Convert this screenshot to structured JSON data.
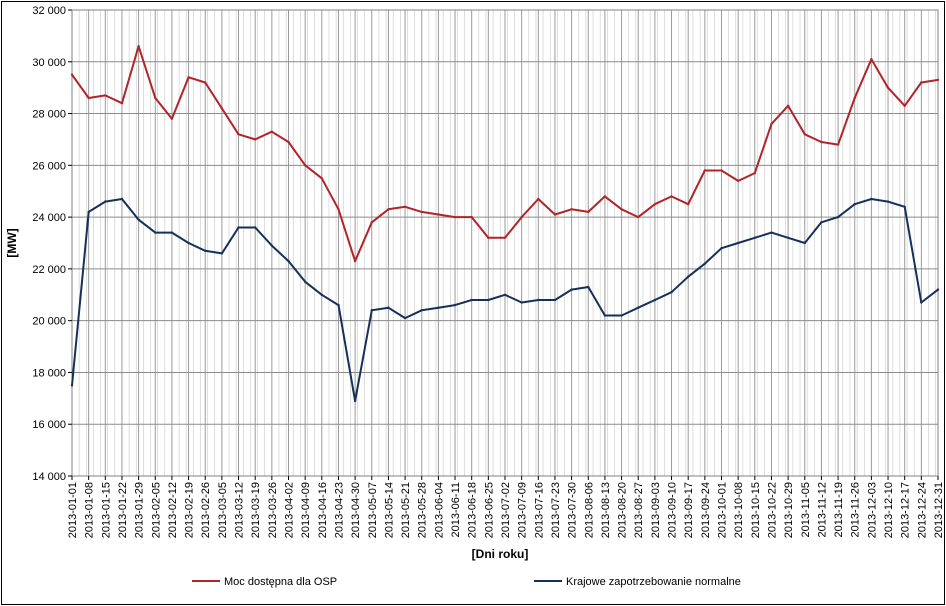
{
  "chart_data": {
    "type": "line",
    "title": "",
    "xlabel": "[Dni roku]",
    "ylabel": "[MW]",
    "ylim": [
      14000,
      32000
    ],
    "y_ticks": [
      14000,
      16000,
      18000,
      20000,
      22000,
      24000,
      26000,
      28000,
      30000,
      32000
    ],
    "y_tick_labels": [
      "14 000",
      "16 000",
      "18 000",
      "20 000",
      "22 000",
      "24 000",
      "26 000",
      "28 000",
      "30 000",
      "32 000"
    ],
    "x_start": "2013-01-01",
    "x_end": "2013-12-31",
    "x_tick_labels": [
      "2013-01-01",
      "2013-01-08",
      "2013-01-15",
      "2013-01-22",
      "2013-01-29",
      "2013-02-05",
      "2013-02-12",
      "2013-02-19",
      "2013-02-26",
      "2013-03-05",
      "2013-03-12",
      "2013-03-19",
      "2013-03-26",
      "2013-04-02",
      "2013-04-09",
      "2013-04-16",
      "2013-04-23",
      "2013-04-30",
      "2013-05-07",
      "2013-05-14",
      "2013-05-21",
      "2013-05-28",
      "2013-06-04",
      "2013-06-11",
      "2013-06-18",
      "2013-06-25",
      "2013-07-02",
      "2013-07-09",
      "2013-07-16",
      "2013-07-23",
      "2013-07-30",
      "2013-08-06",
      "2013-08-13",
      "2013-08-20",
      "2013-08-27",
      "2013-09-03",
      "2013-09-10",
      "2013-09-17",
      "2013-09-24",
      "2013-10-01",
      "2013-10-08",
      "2013-10-15",
      "2013-10-22",
      "2013-10-29",
      "2013-11-05",
      "2013-11-12",
      "2013-11-19",
      "2013-11-26",
      "2013-12-03",
      "2013-12-10",
      "2013-12-17",
      "2013-12-24",
      "2013-12-31"
    ],
    "grid": true,
    "legend_position": "bottom",
    "series": [
      {
        "name": "Moc dostępna dla OSP",
        "color": "#B0242A",
        "x": [
          "2013-01-01",
          "2013-01-08",
          "2013-01-15",
          "2013-01-22",
          "2013-01-29",
          "2013-02-05",
          "2013-02-12",
          "2013-02-19",
          "2013-02-26",
          "2013-03-05",
          "2013-03-12",
          "2013-03-19",
          "2013-03-26",
          "2013-04-02",
          "2013-04-09",
          "2013-04-16",
          "2013-04-23",
          "2013-04-30",
          "2013-05-07",
          "2013-05-14",
          "2013-05-21",
          "2013-05-28",
          "2013-06-04",
          "2013-06-11",
          "2013-06-18",
          "2013-06-25",
          "2013-07-02",
          "2013-07-09",
          "2013-07-16",
          "2013-07-23",
          "2013-07-30",
          "2013-08-06",
          "2013-08-13",
          "2013-08-20",
          "2013-08-27",
          "2013-09-03",
          "2013-09-10",
          "2013-09-17",
          "2013-09-24",
          "2013-10-01",
          "2013-10-08",
          "2013-10-15",
          "2013-10-22",
          "2013-10-29",
          "2013-11-05",
          "2013-11-12",
          "2013-11-19",
          "2013-11-26",
          "2013-12-03",
          "2013-12-10",
          "2013-12-17",
          "2013-12-24",
          "2013-12-31"
        ],
        "y": [
          29500,
          28600,
          28700,
          28400,
          30600,
          28600,
          27800,
          29400,
          29200,
          28200,
          27200,
          27000,
          27300,
          26900,
          26000,
          25500,
          24300,
          22300,
          23800,
          24300,
          24400,
          24200,
          24100,
          24000,
          24000,
          23200,
          23200,
          24000,
          24700,
          24100,
          24300,
          24200,
          24800,
          24300,
          24000,
          24500,
          24800,
          24500,
          25800,
          25800,
          25400,
          25700,
          27600,
          28300,
          27200,
          26900,
          26800,
          28600,
          30100,
          29000,
          28300,
          29200,
          29300
        ]
      },
      {
        "name": "Krajowe zapotrzebowanie normalne",
        "color": "#17305A",
        "x": [
          "2013-01-01",
          "2013-01-08",
          "2013-01-15",
          "2013-01-22",
          "2013-01-29",
          "2013-02-05",
          "2013-02-12",
          "2013-02-19",
          "2013-02-26",
          "2013-03-05",
          "2013-03-12",
          "2013-03-19",
          "2013-03-26",
          "2013-04-02",
          "2013-04-09",
          "2013-04-16",
          "2013-04-23",
          "2013-04-30",
          "2013-05-07",
          "2013-05-14",
          "2013-05-21",
          "2013-05-28",
          "2013-06-04",
          "2013-06-11",
          "2013-06-18",
          "2013-06-25",
          "2013-07-02",
          "2013-07-09",
          "2013-07-16",
          "2013-07-23",
          "2013-07-30",
          "2013-08-06",
          "2013-08-13",
          "2013-08-20",
          "2013-08-27",
          "2013-09-03",
          "2013-09-10",
          "2013-09-17",
          "2013-09-24",
          "2013-10-01",
          "2013-10-08",
          "2013-10-15",
          "2013-10-22",
          "2013-10-29",
          "2013-11-05",
          "2013-11-12",
          "2013-11-19",
          "2013-11-26",
          "2013-12-03",
          "2013-12-10",
          "2013-12-17",
          "2013-12-24",
          "2013-12-31"
        ],
        "y": [
          17500,
          24200,
          24600,
          24700,
          23900,
          23400,
          23400,
          23000,
          22700,
          22600,
          23600,
          23600,
          22900,
          22300,
          21500,
          21000,
          20600,
          16900,
          20400,
          20500,
          20100,
          20400,
          20500,
          20600,
          20800,
          20800,
          21000,
          20700,
          20800,
          20800,
          21200,
          21300,
          20200,
          20200,
          20500,
          20800,
          21100,
          21700,
          22200,
          22800,
          23000,
          23200,
          23400,
          23200,
          23000,
          23800,
          24000,
          24500,
          24700,
          24600,
          24400,
          20700,
          21200
        ]
      }
    ]
  }
}
